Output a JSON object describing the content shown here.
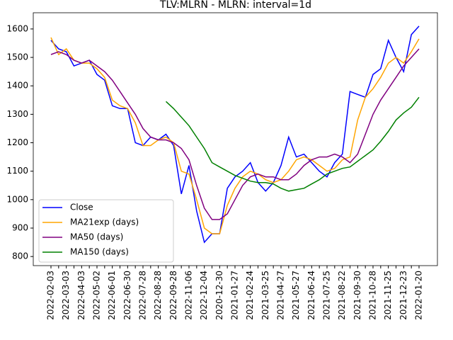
{
  "chart_data": {
    "type": "line",
    "title": "TLV:MLRN - MLRN: interval=1d",
    "categories": [
      "2022-02-03",
      null,
      "2022-03-03",
      null,
      "2022-04-03",
      null,
      "2022-05-02",
      null,
      "2022-06-01",
      null,
      "2022-06-30",
      null,
      "2022-07-28",
      null,
      "2022-08-28",
      null,
      "2022-09-28",
      null,
      "2022-11-06",
      null,
      "2022-12-04",
      null,
      "2020-12-30",
      null,
      "2021-01-27",
      null,
      "2021-02-24",
      null,
      "2021-03-25",
      null,
      "2021-04-27",
      null,
      "2021-05-27",
      null,
      "2021-06-24",
      null,
      "2021-07-25",
      null,
      "2021-08-22",
      null,
      "2021-09-30",
      null,
      "2021-10-28",
      null,
      "2021-11-25",
      null,
      "2021-12-23",
      null,
      "2022-01-20"
    ],
    "series": [
      {
        "name": "Close",
        "color": "#0000ff",
        "values": [
          1560,
          1530,
          1520,
          1470,
          1480,
          1490,
          1440,
          1420,
          1330,
          1320,
          1320,
          1200,
          1190,
          1220,
          1210,
          1230,
          1190,
          1020,
          1120,
          960,
          850,
          880,
          880,
          1040,
          1080,
          1100,
          1130,
          1060,
          1030,
          1060,
          1120,
          1220,
          1150,
          1160,
          1130,
          1100,
          1080,
          1130,
          1160,
          1380,
          1370,
          1360,
          1440,
          1460,
          1560,
          1500,
          1450,
          1580,
          1610
        ]
      },
      {
        "name": "MA21exp (days)",
        "color": "#ffa500",
        "values": [
          1570,
          1510,
          1530,
          1490,
          1480,
          1480,
          1460,
          1430,
          1350,
          1330,
          1320,
          1270,
          1190,
          1190,
          1210,
          1220,
          1200,
          1100,
          1090,
          1000,
          900,
          880,
          880,
          980,
          1040,
          1080,
          1100,
          1090,
          1070,
          1060,
          1070,
          1100,
          1140,
          1150,
          1140,
          1120,
          1100,
          1110,
          1140,
          1150,
          1280,
          1360,
          1390,
          1430,
          1480,
          1500,
          1480,
          1520,
          1565
        ]
      },
      {
        "name": "MA50 (days)",
        "color": "#800080",
        "values": [
          1510,
          1520,
          1510,
          1490,
          1480,
          1490,
          1470,
          1450,
          1420,
          1380,
          1340,
          1300,
          1250,
          1220,
          1210,
          1210,
          1200,
          1180,
          1140,
          1050,
          970,
          930,
          930,
          950,
          1000,
          1050,
          1080,
          1090,
          1080,
          1080,
          1070,
          1070,
          1090,
          1120,
          1140,
          1150,
          1150,
          1160,
          1150,
          1130,
          1160,
          1230,
          1300,
          1350,
          1390,
          1430,
          1470,
          1500,
          1530
        ]
      },
      {
        "name": "MA150 (days)",
        "color": "#008000",
        "values": [
          null,
          null,
          null,
          null,
          null,
          null,
          null,
          null,
          null,
          null,
          null,
          null,
          null,
          null,
          null,
          1345,
          1320,
          1290,
          1260,
          1220,
          1180,
          1130,
          1115,
          1100,
          1085,
          1075,
          1065,
          1060,
          1060,
          1055,
          1040,
          1030,
          1035,
          1040,
          1055,
          1070,
          1090,
          1100,
          1110,
          1115,
          1135,
          1155,
          1175,
          1205,
          1240,
          1280,
          1305,
          1325,
          1360
        ]
      }
    ],
    "ylim": [
      768,
      1657
    ],
    "yticks": [
      800,
      900,
      1000,
      1100,
      1200,
      1300,
      1400,
      1500,
      1600
    ],
    "legend": "lower left",
    "grid": false
  }
}
